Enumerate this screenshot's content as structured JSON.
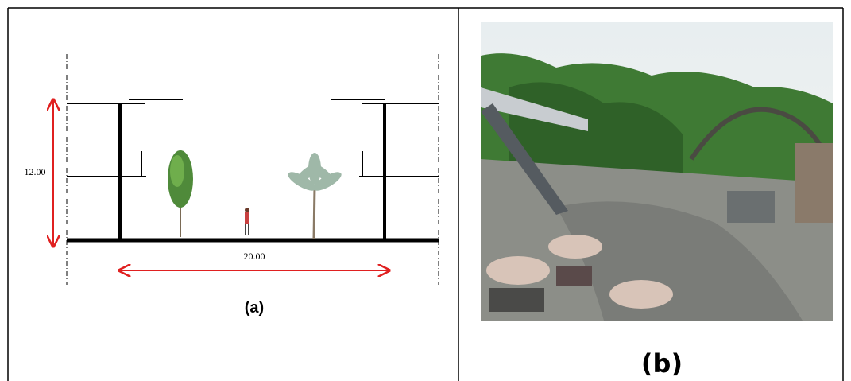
{
  "panels": [
    {
      "dimensions": {
        "height": "12.00",
        "width": "20.00"
      },
      "caption": "(a)"
    },
    {
      "caption": "(b)"
    }
  ]
}
